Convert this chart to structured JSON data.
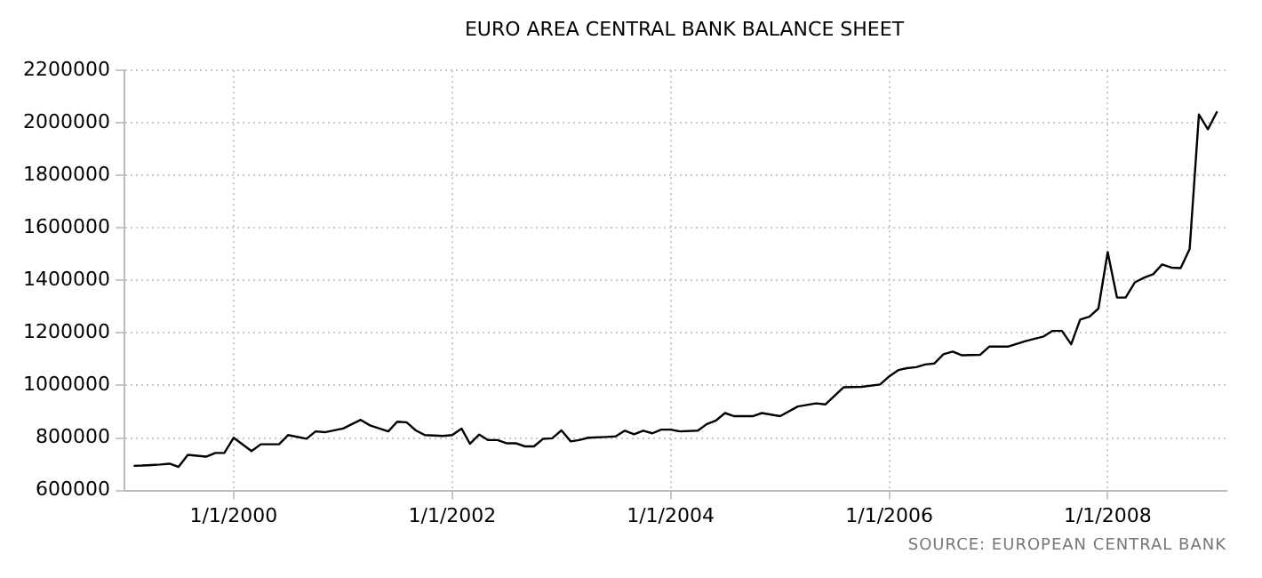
{
  "chart_data": {
    "type": "line",
    "title": "EURO AREA CENTRAL BANK BALANCE SHEET",
    "x": [
      "1999-02",
      "1999-03",
      "1999-04",
      "1999-05",
      "1999-06",
      "1999-07",
      "1999-08",
      "1999-10",
      "1999-11",
      "1999-12",
      "2000-01",
      "2000-03",
      "2000-04",
      "2000-06",
      "2000-07",
      "2000-09",
      "2000-10",
      "2000-11",
      "2001-01",
      "2001-03",
      "2001-04",
      "2001-06",
      "2001-07",
      "2001-08",
      "2001-09",
      "2001-10",
      "2001-12",
      "2002-01",
      "2002-02",
      "2002-03",
      "2002-04",
      "2002-05",
      "2002-06",
      "2002-07",
      "2002-08",
      "2002-09",
      "2002-10",
      "2002-11",
      "2002-12",
      "2003-01",
      "2003-02",
      "2003-03",
      "2003-04",
      "2003-06",
      "2003-07",
      "2003-08",
      "2003-09",
      "2003-10",
      "2003-11",
      "2003-12",
      "2004-01",
      "2004-02",
      "2004-04",
      "2004-05",
      "2004-06",
      "2004-07",
      "2004-08",
      "2004-10",
      "2004-11",
      "2005-01",
      "2005-03",
      "2005-05",
      "2005-06",
      "2005-08",
      "2005-10",
      "2005-12",
      "2006-01",
      "2006-02",
      "2006-03",
      "2006-04",
      "2006-05",
      "2006-06",
      "2006-07",
      "2006-08",
      "2006-09",
      "2006-11",
      "2006-12",
      "2007-02",
      "2007-04",
      "2007-06",
      "2007-07",
      "2007-08",
      "2007-09",
      "2007-10",
      "2007-11",
      "2007-12",
      "2008-01",
      "2008-02",
      "2008-03",
      "2008-04",
      "2008-05",
      "2008-06",
      "2008-07",
      "2008-08",
      "2008-09",
      "2008-10",
      "2008-11",
      "2008-12",
      "2009-01"
    ],
    "series": [
      {
        "color": "#000000",
        "values": [
          694000,
          695000,
          697000,
          699000,
          702000,
          690000,
          736000,
          729000,
          743000,
          743000,
          801000,
          750000,
          776000,
          776000,
          811000,
          797000,
          825000,
          822000,
          836000,
          869000,
          848000,
          825000,
          862000,
          860000,
          829000,
          811000,
          808000,
          811000,
          836000,
          778000,
          813000,
          792000,
          792000,
          780000,
          780000,
          768000,
          768000,
          797000,
          799000,
          829000,
          787000,
          792000,
          801000,
          804000,
          806000,
          828000,
          814000,
          828000,
          818000,
          832000,
          832000,
          825000,
          828000,
          853000,
          867000,
          895000,
          883000,
          883000,
          895000,
          883000,
          920000,
          932000,
          928000,
          993000,
          995000,
          1004000,
          1035000,
          1059000,
          1066000,
          1070000,
          1080000,
          1084000,
          1119000,
          1129000,
          1115000,
          1117000,
          1148000,
          1148000,
          1169000,
          1187000,
          1208000,
          1208000,
          1157000,
          1251000,
          1262000,
          1293000,
          1508000,
          1335000,
          1335000,
          1393000,
          1410000,
          1424000,
          1461000,
          1449000,
          1447000,
          1520000,
          2032000,
          1976000,
          2044000
        ]
      }
    ],
    "xlim": [
      "1999-01",
      "2009-02"
    ],
    "xticks": [
      {
        "value": "2000-01-01",
        "label": "1/1/2000"
      },
      {
        "value": "2002-01-01",
        "label": "1/1/2002"
      },
      {
        "value": "2004-01-01",
        "label": "1/1/2004"
      },
      {
        "value": "2006-01-01",
        "label": "1/1/2006"
      },
      {
        "value": "2008-01-01",
        "label": "1/1/2008"
      }
    ],
    "ylim": [
      600000,
      2200000
    ],
    "yticks": [
      600000,
      800000,
      1000000,
      1200000,
      1400000,
      1600000,
      1800000,
      2000000,
      2200000
    ],
    "grid": true,
    "legend": false,
    "marker": "none",
    "line_style": "solid",
    "annotations": [
      "SOURCE: EUROPEAN CENTRAL BANK"
    ]
  }
}
